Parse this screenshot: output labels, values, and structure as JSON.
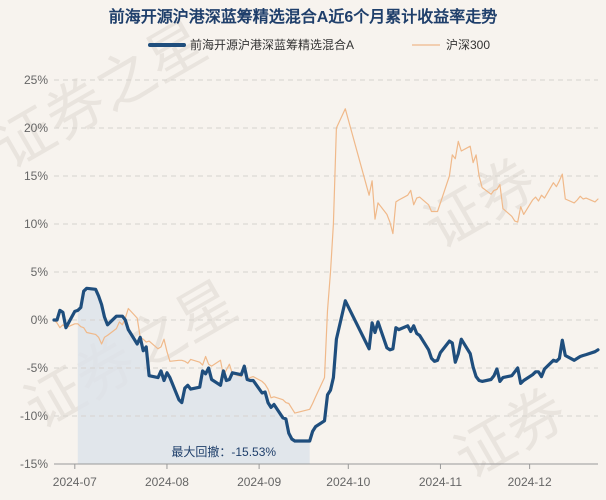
{
  "chart_data": {
    "type": "line",
    "title": "前海开源沪港深蓝筹精选混合A近6个月累计收益率走势",
    "xlabel": "",
    "ylabel": "",
    "ylim": [
      -15,
      25
    ],
    "yticks": [
      "25%",
      "20%",
      "15%",
      "10%",
      "5%",
      "0%",
      "-5%",
      "-10%",
      "-15%"
    ],
    "ytick_values": [
      25,
      20,
      15,
      10,
      5,
      0,
      -5,
      -10,
      -15
    ],
    "xticks": [
      "2024-07",
      "2024-08",
      "2024-09",
      "2024-10",
      "2024-11",
      "2024-12"
    ],
    "xtick_dates": [
      "2024-07-01",
      "2024-08-01",
      "2024-09-01",
      "2024-10-01",
      "2024-11-01",
      "2024-12-01"
    ],
    "grid": true,
    "legend_position": "top",
    "annotation": {
      "text": "最大回撤：-15.53%",
      "start_date": "2024-07-02",
      "end_date": "2024-09-18"
    },
    "series": [
      {
        "name": "前海开源沪港深蓝筹精选混合A",
        "color": "#1f4e7d",
        "points": [
          [
            "2024-06-24",
            0.0
          ],
          [
            "2024-06-25",
            0.0
          ],
          [
            "2024-06-26",
            1.0
          ],
          [
            "2024-06-27",
            0.8
          ],
          [
            "2024-06-28",
            -0.8
          ],
          [
            "2024-07-01",
            0.9
          ],
          [
            "2024-07-02",
            1.0
          ],
          [
            "2024-07-03",
            1.3
          ],
          [
            "2024-07-04",
            3.0
          ],
          [
            "2024-07-05",
            3.3
          ],
          [
            "2024-07-08",
            3.2
          ],
          [
            "2024-07-09",
            2.5
          ],
          [
            "2024-07-10",
            1.6
          ],
          [
            "2024-07-11",
            0.3
          ],
          [
            "2024-07-12",
            -0.5
          ],
          [
            "2024-07-15",
            0.4
          ],
          [
            "2024-07-16",
            0.4
          ],
          [
            "2024-07-17",
            0.4
          ],
          [
            "2024-07-18",
            0.0
          ],
          [
            "2024-07-19",
            -1.0
          ],
          [
            "2024-07-22",
            -2.5
          ],
          [
            "2024-07-23",
            -1.8
          ],
          [
            "2024-07-24",
            -3.2
          ],
          [
            "2024-07-25",
            -2.8
          ],
          [
            "2024-07-26",
            -5.8
          ],
          [
            "2024-07-29",
            -6.0
          ],
          [
            "2024-07-30",
            -5.3
          ],
          [
            "2024-07-31",
            -6.3
          ],
          [
            "2024-08-01",
            -5.5
          ],
          [
            "2024-08-02",
            -6.0
          ],
          [
            "2024-08-05",
            -8.3
          ],
          [
            "2024-08-06",
            -8.6
          ],
          [
            "2024-08-07",
            -7.1
          ],
          [
            "2024-08-08",
            -6.8
          ],
          [
            "2024-08-09",
            -7.2
          ],
          [
            "2024-08-12",
            -7.0
          ],
          [
            "2024-08-13",
            -5.3
          ],
          [
            "2024-08-14",
            -5.6
          ],
          [
            "2024-08-15",
            -5.0
          ],
          [
            "2024-08-16",
            -6.2
          ],
          [
            "2024-08-19",
            -6.8
          ],
          [
            "2024-08-20",
            -5.3
          ],
          [
            "2024-08-21",
            -6.3
          ],
          [
            "2024-08-22",
            -6.2
          ],
          [
            "2024-08-23",
            -5.5
          ],
          [
            "2024-08-26",
            -5.7
          ],
          [
            "2024-08-27",
            -4.8
          ],
          [
            "2024-08-28",
            -6.2
          ],
          [
            "2024-08-29",
            -6.3
          ],
          [
            "2024-08-30",
            -6.3
          ],
          [
            "2024-09-02",
            -7.6
          ],
          [
            "2024-09-03",
            -7.5
          ],
          [
            "2024-09-04",
            -8.6
          ],
          [
            "2024-09-05",
            -9.1
          ],
          [
            "2024-09-06",
            -8.8
          ],
          [
            "2024-09-09",
            -10.2
          ],
          [
            "2024-09-10",
            -10.3
          ],
          [
            "2024-09-11",
            -11.8
          ],
          [
            "2024-09-12",
            -12.4
          ],
          [
            "2024-09-13",
            -12.6
          ],
          [
            "2024-09-18",
            -12.6
          ],
          [
            "2024-09-19",
            -11.6
          ],
          [
            "2024-09-20",
            -11.1
          ],
          [
            "2024-09-23",
            -10.5
          ],
          [
            "2024-09-24",
            -7.8
          ],
          [
            "2024-09-25",
            -7.3
          ],
          [
            "2024-09-26",
            -6.0
          ],
          [
            "2024-09-27",
            -2.0
          ],
          [
            "2024-09-30",
            2.0
          ],
          [
            "2024-10-08",
            -3.0
          ],
          [
            "2024-10-09",
            -0.3
          ],
          [
            "2024-10-10",
            -1.3
          ],
          [
            "2024-10-11",
            -0.2
          ],
          [
            "2024-10-14",
            -2.9
          ],
          [
            "2024-10-15",
            -3.1
          ],
          [
            "2024-10-16",
            -3.0
          ],
          [
            "2024-10-17",
            -0.8
          ],
          [
            "2024-10-18",
            -1.0
          ],
          [
            "2024-10-21",
            -0.6
          ],
          [
            "2024-10-22",
            -1.2
          ],
          [
            "2024-10-23",
            -0.6
          ],
          [
            "2024-10-24",
            -1.4
          ],
          [
            "2024-10-25",
            -1.6
          ],
          [
            "2024-10-28",
            -3.1
          ],
          [
            "2024-10-29",
            -4.0
          ],
          [
            "2024-10-30",
            -4.3
          ],
          [
            "2024-10-31",
            -4.2
          ],
          [
            "2024-11-01",
            -3.4
          ],
          [
            "2024-11-04",
            -2.2
          ],
          [
            "2024-11-05",
            -2.4
          ],
          [
            "2024-11-06",
            -4.4
          ],
          [
            "2024-11-07",
            -3.5
          ],
          [
            "2024-11-08",
            -2.0
          ],
          [
            "2024-11-11",
            -3.5
          ],
          [
            "2024-11-12",
            -4.9
          ],
          [
            "2024-11-13",
            -5.9
          ],
          [
            "2024-11-14",
            -6.3
          ],
          [
            "2024-11-15",
            -6.4
          ],
          [
            "2024-11-18",
            -6.2
          ],
          [
            "2024-11-19",
            -5.8
          ],
          [
            "2024-11-20",
            -5.1
          ],
          [
            "2024-11-21",
            -6.4
          ],
          [
            "2024-11-22",
            -6.0
          ],
          [
            "2024-11-25",
            -5.8
          ],
          [
            "2024-11-26",
            -5.4
          ],
          [
            "2024-11-27",
            -5.0
          ],
          [
            "2024-11-28",
            -6.6
          ],
          [
            "2024-11-29",
            -6.3
          ],
          [
            "2024-12-02",
            -5.7
          ],
          [
            "2024-12-03",
            -5.4
          ],
          [
            "2024-12-04",
            -5.4
          ],
          [
            "2024-12-05",
            -5.9
          ],
          [
            "2024-12-06",
            -5.1
          ],
          [
            "2024-12-09",
            -4.2
          ],
          [
            "2024-12-10",
            -4.3
          ],
          [
            "2024-12-11",
            -4.0
          ],
          [
            "2024-12-12",
            -2.1
          ],
          [
            "2024-12-13",
            -3.7
          ],
          [
            "2024-12-16",
            -4.2
          ],
          [
            "2024-12-17",
            -4.0
          ],
          [
            "2024-12-18",
            -3.8
          ],
          [
            "2024-12-19",
            -3.7
          ],
          [
            "2024-12-20",
            -3.6
          ],
          [
            "2024-12-23",
            -3.3
          ],
          [
            "2024-12-24",
            -3.1
          ]
        ]
      },
      {
        "name": "沪深300",
        "color": "#f0b98a",
        "points": [
          [
            "2024-06-24",
            0.0
          ],
          [
            "2024-06-25",
            -0.3
          ],
          [
            "2024-06-26",
            -0.8
          ],
          [
            "2024-06-27",
            -0.5
          ],
          [
            "2024-06-28",
            -0.8
          ],
          [
            "2024-07-01",
            -0.4
          ],
          [
            "2024-07-02",
            -0.4
          ],
          [
            "2024-07-03",
            -0.7
          ],
          [
            "2024-07-04",
            -0.8
          ],
          [
            "2024-07-05",
            -1.3
          ],
          [
            "2024-07-08",
            -1.5
          ],
          [
            "2024-07-09",
            -1.8
          ],
          [
            "2024-07-10",
            -2.5
          ],
          [
            "2024-07-11",
            -1.8
          ],
          [
            "2024-07-12",
            -1.6
          ],
          [
            "2024-07-15",
            -0.9
          ],
          [
            "2024-07-16",
            -0.2
          ],
          [
            "2024-07-17",
            -0.5
          ],
          [
            "2024-07-18",
            0.2
          ],
          [
            "2024-07-19",
            1.2
          ],
          [
            "2024-07-22",
            0.2
          ],
          [
            "2024-07-23",
            -1.8
          ],
          [
            "2024-07-24",
            -2.0
          ],
          [
            "2024-07-25",
            -2.3
          ],
          [
            "2024-07-26",
            -2.2
          ],
          [
            "2024-07-29",
            -3.0
          ],
          [
            "2024-07-30",
            -2.8
          ],
          [
            "2024-07-31",
            -2.0
          ],
          [
            "2024-08-01",
            -3.3
          ],
          [
            "2024-08-02",
            -4.3
          ],
          [
            "2024-08-05",
            -4.2
          ],
          [
            "2024-08-06",
            -4.2
          ],
          [
            "2024-08-07",
            -4.3
          ],
          [
            "2024-08-08",
            -4.5
          ],
          [
            "2024-08-09",
            -4.1
          ],
          [
            "2024-08-12",
            -4.4
          ],
          [
            "2024-08-13",
            -4.7
          ],
          [
            "2024-08-14",
            -3.8
          ],
          [
            "2024-08-15",
            -4.6
          ],
          [
            "2024-08-16",
            -4.8
          ],
          [
            "2024-08-19",
            -4.2
          ],
          [
            "2024-08-20",
            -5.8
          ],
          [
            "2024-08-21",
            -5.2
          ],
          [
            "2024-08-22",
            -4.6
          ],
          [
            "2024-08-23",
            -5.6
          ],
          [
            "2024-08-26",
            -5.9
          ],
          [
            "2024-08-27",
            -5.0
          ],
          [
            "2024-08-28",
            -6.2
          ],
          [
            "2024-08-29",
            -6.0
          ],
          [
            "2024-08-30",
            -5.9
          ],
          [
            "2024-09-02",
            -6.4
          ],
          [
            "2024-09-03",
            -6.7
          ],
          [
            "2024-09-04",
            -7.2
          ],
          [
            "2024-09-05",
            -8.1
          ],
          [
            "2024-09-06",
            -8.0
          ],
          [
            "2024-09-09",
            -8.3
          ],
          [
            "2024-09-10",
            -8.6
          ],
          [
            "2024-09-11",
            -8.7
          ],
          [
            "2024-09-12",
            -9.2
          ],
          [
            "2024-09-13",
            -9.7
          ],
          [
            "2024-09-18",
            -9.3
          ],
          [
            "2024-09-19",
            -8.7
          ],
          [
            "2024-09-20",
            -8.0
          ],
          [
            "2024-09-23",
            -6.0
          ],
          [
            "2024-09-24",
            1.0
          ],
          [
            "2024-09-25",
            5.0
          ],
          [
            "2024-09-26",
            10.0
          ],
          [
            "2024-09-27",
            20.0
          ],
          [
            "2024-09-30",
            22.0
          ],
          [
            "2024-10-08",
            13.0
          ],
          [
            "2024-10-09",
            14.5
          ],
          [
            "2024-10-10",
            10.5
          ],
          [
            "2024-10-11",
            12.2
          ],
          [
            "2024-10-14",
            11.0
          ],
          [
            "2024-10-15",
            10.2
          ],
          [
            "2024-10-16",
            9.0
          ],
          [
            "2024-10-17",
            12.3
          ],
          [
            "2024-10-18",
            12.5
          ],
          [
            "2024-10-21",
            13.0
          ],
          [
            "2024-10-22",
            13.5
          ],
          [
            "2024-10-23",
            12.0
          ],
          [
            "2024-10-24",
            12.7
          ],
          [
            "2024-10-25",
            12.8
          ],
          [
            "2024-10-28",
            12.0
          ],
          [
            "2024-10-29",
            11.3
          ],
          [
            "2024-10-30",
            11.3
          ],
          [
            "2024-10-31",
            11.3
          ],
          [
            "2024-11-01",
            12.2
          ],
          [
            "2024-11-04",
            15.0
          ],
          [
            "2024-11-05",
            17.2
          ],
          [
            "2024-11-06",
            16.8
          ],
          [
            "2024-11-07",
            18.6
          ],
          [
            "2024-11-08",
            17.6
          ],
          [
            "2024-11-11",
            18.1
          ],
          [
            "2024-11-12",
            16.4
          ],
          [
            "2024-11-13",
            17.2
          ],
          [
            "2024-11-14",
            15.0
          ],
          [
            "2024-11-15",
            13.8
          ],
          [
            "2024-11-18",
            13.1
          ],
          [
            "2024-11-19",
            13.5
          ],
          [
            "2024-11-20",
            13.6
          ],
          [
            "2024-11-21",
            14.1
          ],
          [
            "2024-11-22",
            11.6
          ],
          [
            "2024-11-25",
            10.8
          ],
          [
            "2024-11-26",
            10.3
          ],
          [
            "2024-11-27",
            10.2
          ],
          [
            "2024-11-28",
            11.8
          ],
          [
            "2024-11-29",
            11.0
          ],
          [
            "2024-12-02",
            12.5
          ],
          [
            "2024-12-03",
            12.8
          ],
          [
            "2024-12-04",
            12.4
          ],
          [
            "2024-12-05",
            13.0
          ],
          [
            "2024-12-06",
            12.7
          ],
          [
            "2024-12-09",
            14.3
          ],
          [
            "2024-12-10",
            13.9
          ],
          [
            "2024-12-11",
            14.5
          ],
          [
            "2024-12-12",
            15.2
          ],
          [
            "2024-12-13",
            12.6
          ],
          [
            "2024-12-16",
            12.2
          ],
          [
            "2024-12-17",
            12.5
          ],
          [
            "2024-12-18",
            12.9
          ],
          [
            "2024-12-19",
            12.6
          ],
          [
            "2024-12-20",
            12.7
          ],
          [
            "2024-12-23",
            12.3
          ],
          [
            "2024-12-24",
            12.6
          ]
        ]
      }
    ]
  }
}
